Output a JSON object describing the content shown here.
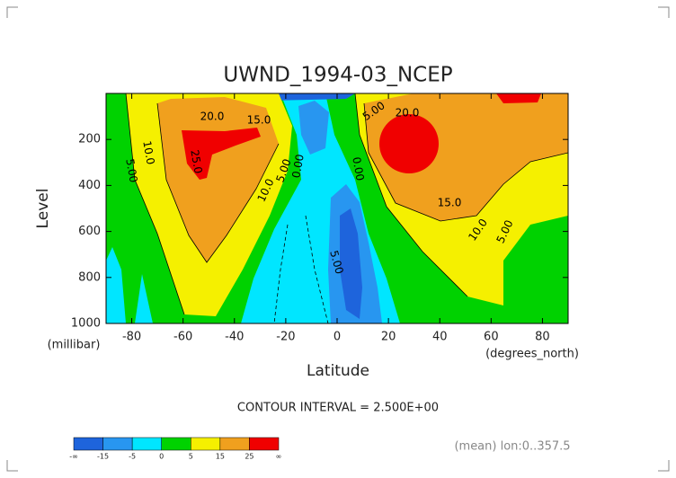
{
  "chart_data": {
    "type": "contour",
    "title": "UWND_1994-03_NCEP",
    "x_label": "Latitude",
    "x_unit": "(degrees_north)",
    "y_label": "Level",
    "y_unit": "(millibar)",
    "xlim": [
      -90,
      90
    ],
    "xticks": [
      -80,
      -60,
      -40,
      -20,
      0,
      20,
      40,
      60,
      80
    ],
    "ylim": [
      1000,
      0
    ],
    "yticks": [
      200,
      400,
      600,
      800,
      1000
    ],
    "contour_interval": "CONTOUR INTERVAL = 2.500E+00",
    "note": "(mean) lon:0..357.5",
    "contour_labels": [
      "20.0",
      "15.0",
      "10.0",
      "5.00",
      "25.0",
      "10.0",
      "5.00",
      "0.00",
      "5.00",
      "0.00",
      "5.00",
      "20.0",
      "15.0",
      "10.0",
      "5.00"
    ],
    "colorbar": {
      "colors": [
        "#1e64dc",
        "#2896f0",
        "#00e6ff",
        "#00d200",
        "#f5f000",
        "#f0a01e",
        "#f00000"
      ],
      "labels": [
        "-∞",
        "-15",
        "-5",
        "0",
        "5",
        "15",
        "25",
        "∞"
      ]
    }
  }
}
